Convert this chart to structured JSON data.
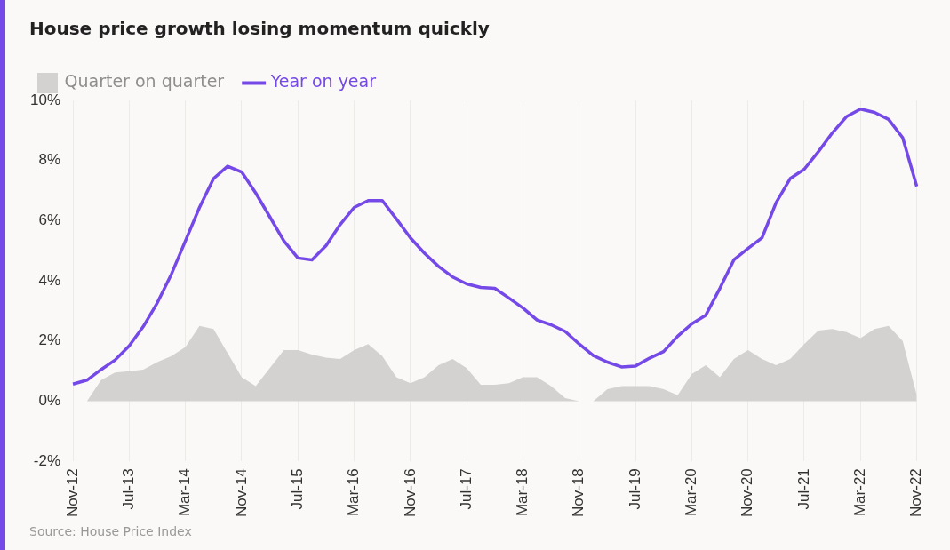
{
  "chart_data": {
    "type": "line",
    "title": "House price growth losing momentum quickly",
    "categories": [
      "Nov-12",
      null,
      null,
      null,
      "Jul-13",
      null,
      null,
      null,
      "Mar-14",
      null,
      null,
      null,
      "Nov-14",
      null,
      null,
      null,
      "Jul-15",
      null,
      null,
      null,
      "Mar-16",
      null,
      null,
      null,
      "Nov-16",
      null,
      null,
      null,
      "Jul-17",
      null,
      null,
      null,
      "Mar-18",
      null,
      null,
      null,
      "Nov-18",
      null,
      null,
      null,
      "Jul-19",
      null,
      null,
      null,
      "Mar-20",
      null,
      null,
      null,
      "Nov-20",
      null,
      null,
      null,
      "Jul-21",
      null,
      null,
      null,
      "Mar-22",
      null,
      null,
      null,
      "Nov-22"
    ],
    "series": [
      {
        "name": "Quarter on quarter",
        "type": "area",
        "color": "#d3d2d0",
        "values": [
          0,
          0,
          0.7,
          0.95,
          1.0,
          1.05,
          1.3,
          1.5,
          1.8,
          2.5,
          2.4,
          1.6,
          0.8,
          0.5,
          1.1,
          1.7,
          1.7,
          1.55,
          1.45,
          1.4,
          1.7,
          1.9,
          1.5,
          0.8,
          0.6,
          0.8,
          1.2,
          1.4,
          1.1,
          0.55,
          0.55,
          0.6,
          0.8,
          0.8,
          0.5,
          0.1,
          0,
          0,
          0.4,
          0.5,
          0.5,
          0.5,
          0.4,
          0.2,
          0.9,
          1.2,
          0.8,
          1.4,
          1.7,
          1.4,
          1.2,
          1.4,
          1.9,
          2.35,
          2.4,
          2.3,
          2.1,
          2.4,
          2.5,
          2.0,
          0.2
        ]
      },
      {
        "name": "Year on year",
        "type": "line",
        "color": "#7449e8",
        "values": [
          0.57,
          0.7,
          1.05,
          1.37,
          1.84,
          2.48,
          3.27,
          4.22,
          5.33,
          6.44,
          7.4,
          7.81,
          7.62,
          6.92,
          6.13,
          5.33,
          4.76,
          4.7,
          5.17,
          5.87,
          6.44,
          6.67,
          6.67,
          6.06,
          5.43,
          4.92,
          4.48,
          4.13,
          3.9,
          3.78,
          3.75,
          3.43,
          3.1,
          2.7,
          2.54,
          2.32,
          1.9,
          1.52,
          1.3,
          1.14,
          1.17,
          1.43,
          1.65,
          2.16,
          2.57,
          2.86,
          3.75,
          4.7,
          5.08,
          5.43,
          6.6,
          7.4,
          7.71,
          8.29,
          8.92,
          9.46,
          9.71,
          9.6,
          9.37,
          8.76,
          7.14
        ]
      }
    ],
    "ylim": [
      -2,
      10
    ],
    "yticks": [
      {
        "value": -2,
        "label": "-2%"
      },
      {
        "value": 0,
        "label": "0%"
      },
      {
        "value": 2,
        "label": "2%"
      },
      {
        "value": 4,
        "label": "4%"
      },
      {
        "value": 6,
        "label": "6%"
      },
      {
        "value": 8,
        "label": "8%"
      },
      {
        "value": 10,
        "label": "10%"
      }
    ],
    "grid": "x",
    "legend": "top left",
    "marker": "none",
    "annotations": [
      "Source: House Price Index"
    ]
  }
}
